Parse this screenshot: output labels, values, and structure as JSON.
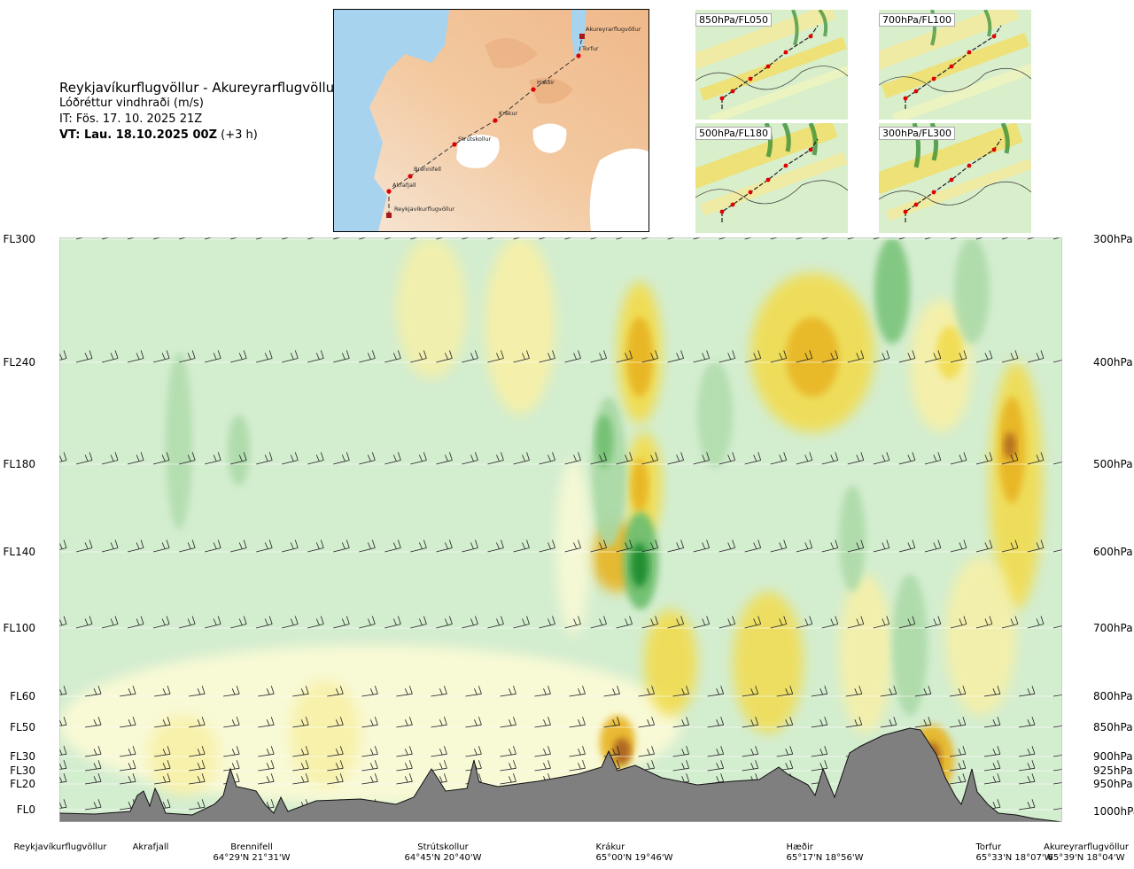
{
  "header": {
    "route": "Reykjavíkurflugvöllur - Akureyrarflugvöllur",
    "parameter": "Lóðréttur vindhraði (m/s)",
    "issue_time": "IT: Fös. 17. 10. 2025 21Z",
    "valid_time": "VT: Lau. 18.10.2025 00Z",
    "lead_time": "(+3 h)"
  },
  "route_map": {
    "points": [
      "Reykjavíkurflugvöllur",
      "Akrafjall",
      "Brennifell",
      "Strútskollur",
      "Krákur",
      "Hæðir",
      "Torfur",
      "Akureyrarflugvöllur"
    ]
  },
  "insets": [
    "850hPa/FL050",
    "700hPa/FL100",
    "500hPa/FL180",
    "300hPa/FL300"
  ],
  "chart_data": {
    "type": "heatmap",
    "title": "Lóðréttur vindhraði (m/s)",
    "x_axis": "route_waypoints",
    "y_axis_left_flight_levels": [
      "FL300",
      "FL240",
      "FL180",
      "FL140",
      "FL100",
      "FL60",
      "FL50",
      "FL30",
      "FL30",
      "FL20",
      "FL0"
    ],
    "y_axis_right_pressure": [
      "300hPa",
      "400hPa",
      "500hPa",
      "600hPa",
      "700hPa",
      "800hPa",
      "850hPa",
      "900hPa",
      "925hPa",
      "950hPa",
      "1000hPa"
    ],
    "levels_hpa": [
      300,
      400,
      500,
      600,
      700,
      800,
      850,
      900,
      925,
      950,
      1000
    ],
    "colorscale": {
      "sink_strong": "#1e8c2e",
      "sink": "#6fbf6f",
      "sink_weak": "#a8d8a4",
      "neutral_neg": "#d3edcf",
      "neutral_pos": "#fdfbd6",
      "lift_weak": "#f8f0a6",
      "lift": "#f2dc50",
      "lift_strong": "#e8b420",
      "lift_very_strong": "#a0521e"
    },
    "terrain_color": "#7f7f7f",
    "wind_barbs": "shown at each pressure level"
  },
  "waypoints": [
    {
      "name": "Reykjavíkurflugvöllur",
      "coord": ""
    },
    {
      "name": "Akrafjall",
      "coord": ""
    },
    {
      "name": "Brennifell",
      "coord": "64°29'N 21°31'W"
    },
    {
      "name": "Strútskollur",
      "coord": "64°45'N 20°40'W"
    },
    {
      "name": "Krákur",
      "coord": "65°00'N 19°46'W"
    },
    {
      "name": "Hæðir",
      "coord": "65°17'N 18°56'W"
    },
    {
      "name": "Torfur",
      "coord": "65°33'N 18°07'W"
    },
    {
      "name": "Akureyrarflugvöllur",
      "coord": "65°39'N 18°04'W"
    }
  ]
}
